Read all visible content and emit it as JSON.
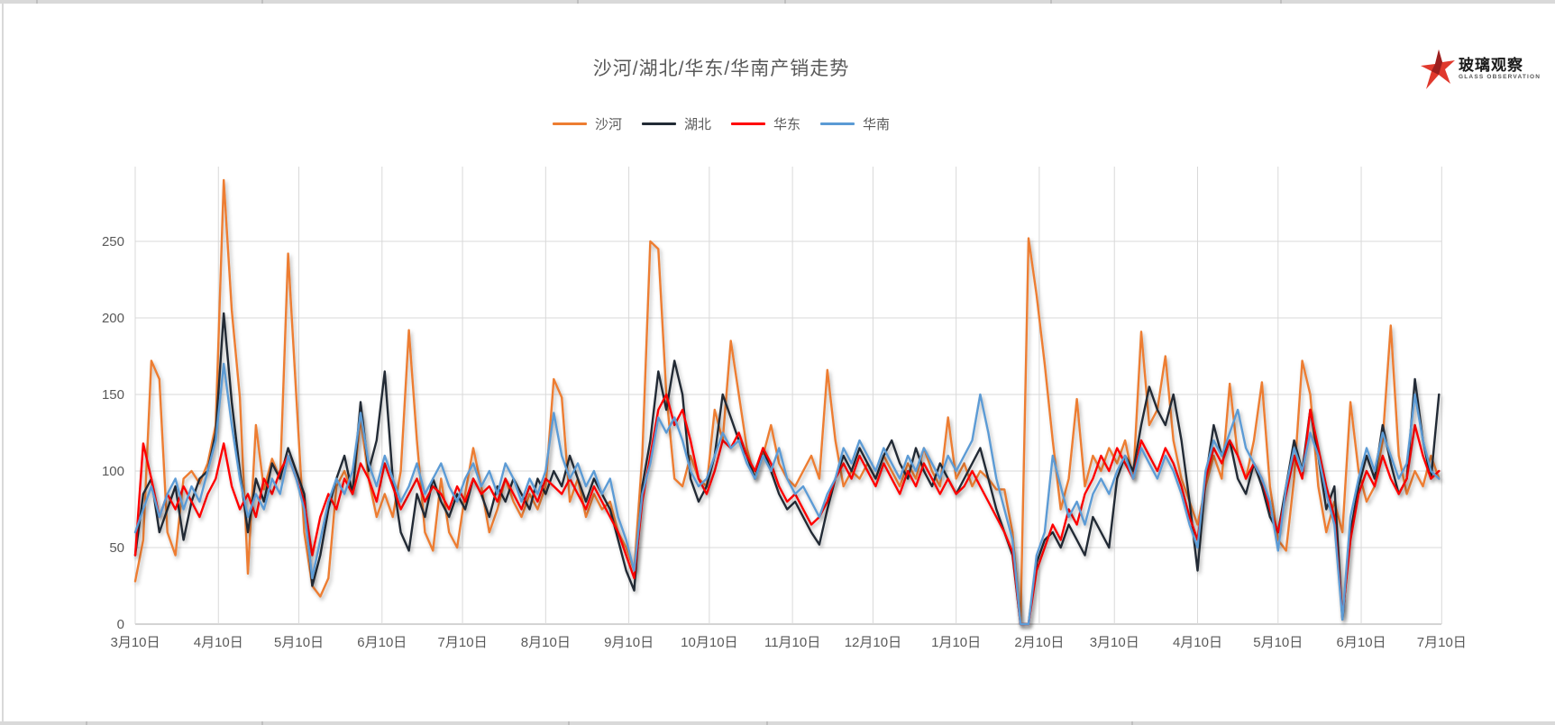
{
  "frame": {
    "top_strip_ticks_x": [
      40,
      290,
      640,
      870,
      1165,
      1420
    ],
    "bottom_strip_ticks_x": [
      95,
      290,
      630,
      850,
      1255
    ]
  },
  "logo": {
    "title": "玻璃观察",
    "subtitle": "GLASS OBSERVATION",
    "star_color": "#e0392d",
    "star_accent_color": "#9c1f1f"
  },
  "chart_data": {
    "type": "line",
    "title": "沙河/湖北/华东/华南产销走势",
    "title_color": "#595959",
    "legend_position": "top-center",
    "grid": true,
    "grid_color": "#d9d9d9",
    "axis_line_color": "#c6c6c6",
    "axis_label_color": "#595959",
    "y_ticks": [
      0,
      50,
      100,
      150,
      200,
      250
    ],
    "ylim": [
      0,
      299
    ],
    "x_tick_labels": [
      "3月10日",
      "4月10日",
      "5月10日",
      "6月10日",
      "7月10日",
      "8月10日",
      "9月10日",
      "10月10日",
      "11月10日",
      "12月10日",
      "1月10日",
      "2月10日",
      "3月10日",
      "4月10日",
      "5月10日",
      "6月10日",
      "7月10日"
    ],
    "x_tick_day_offsets": [
      0,
      31,
      61,
      92,
      122,
      153,
      184,
      214,
      245,
      275,
      306,
      337,
      365,
      396,
      426,
      457,
      487
    ],
    "sample_interval_days": 3,
    "series": [
      {
        "name": "沙河",
        "color": "#ED7D31",
        "values": [
          28,
          55,
          172,
          160,
          60,
          45,
          95,
          100,
          92,
          105,
          130,
          290,
          205,
          148,
          33,
          130,
          88,
          108,
          95,
          242,
          150,
          60,
          25,
          18,
          30,
          90,
          100,
          85,
          135,
          95,
          70,
          85,
          70,
          100,
          192,
          120,
          60,
          48,
          95,
          60,
          50,
          85,
          115,
          90,
          60,
          75,
          95,
          80,
          70,
          85,
          75,
          90,
          160,
          148,
          80,
          95,
          70,
          85,
          75,
          80,
          60,
          50,
          35,
          110,
          250,
          245,
          150,
          95,
          90,
          110,
          95,
          90,
          140,
          120,
          185,
          150,
          115,
          95,
          110,
          130,
          105,
          95,
          90,
          100,
          110,
          95,
          166,
          120,
          90,
          100,
          95,
          105,
          95,
          110,
          100,
          90,
          105,
          95,
          115,
          100,
          90,
          135,
          95,
          105,
          90,
          100,
          95,
          88,
          88,
          60,
          0,
          252,
          215,
          170,
          120,
          75,
          95,
          147,
          90,
          110,
          100,
          115,
          105,
          120,
          95,
          191,
          130,
          140,
          175,
          120,
          95,
          80,
          65,
          90,
          110,
          95,
          157,
          110,
          95,
          120,
          158,
          90,
          55,
          48,
          95,
          172,
          150,
          90,
          60,
          80,
          60,
          145,
          100,
          80,
          90,
          120,
          195,
          110,
          85,
          100,
          90,
          110,
          95
        ]
      },
      {
        "name": "湖北",
        "color": "#222B35",
        "values": [
          45,
          85,
          95,
          60,
          75,
          90,
          55,
          80,
          95,
          100,
          125,
          203,
          145,
          100,
          60,
          95,
          80,
          105,
          95,
          115,
          100,
          85,
          25,
          45,
          75,
          95,
          110,
          85,
          145,
          100,
          120,
          165,
          95,
          60,
          48,
          85,
          70,
          95,
          80,
          70,
          85,
          75,
          95,
          85,
          70,
          90,
          80,
          95,
          85,
          75,
          95,
          85,
          100,
          90,
          110,
          95,
          80,
          95,
          85,
          75,
          55,
          35,
          22,
          90,
          120,
          165,
          140,
          172,
          150,
          95,
          80,
          90,
          110,
          150,
          135,
          120,
          110,
          95,
          115,
          100,
          85,
          75,
          80,
          70,
          60,
          52,
          75,
          95,
          110,
          100,
          115,
          105,
          95,
          110,
          120,
          105,
          95,
          115,
          100,
          90,
          105,
          95,
          85,
          95,
          105,
          115,
          95,
          75,
          60,
          45,
          0,
          0,
          40,
          55,
          60,
          50,
          65,
          55,
          45,
          70,
          60,
          50,
          95,
          110,
          100,
          130,
          155,
          140,
          130,
          150,
          120,
          80,
          35,
          95,
          130,
          110,
          120,
          95,
          85,
          105,
          90,
          70,
          60,
          90,
          120,
          100,
          140,
          110,
          75,
          90,
          3,
          60,
          90,
          110,
          95,
          130,
          105,
          85,
          95,
          160,
          120,
          95,
          150
        ]
      },
      {
        "name": "华东",
        "color": "#FF0000",
        "values": [
          45,
          118,
          95,
          70,
          85,
          75,
          90,
          80,
          70,
          85,
          95,
          118,
          90,
          75,
          85,
          70,
          95,
          85,
          100,
          110,
          95,
          80,
          45,
          70,
          85,
          75,
          95,
          85,
          105,
          95,
          80,
          105,
          90,
          75,
          85,
          95,
          80,
          90,
          85,
          75,
          90,
          80,
          95,
          85,
          90,
          80,
          95,
          85,
          75,
          90,
          80,
          95,
          90,
          85,
          95,
          85,
          75,
          90,
          80,
          70,
          60,
          45,
          30,
          80,
          110,
          140,
          150,
          130,
          140,
          120,
          95,
          85,
          100,
          120,
          115,
          125,
          110,
          100,
          115,
          105,
          90,
          80,
          85,
          75,
          65,
          70,
          80,
          95,
          105,
          95,
          110,
          100,
          90,
          105,
          95,
          85,
          100,
          90,
          105,
          95,
          85,
          95,
          85,
          90,
          100,
          90,
          80,
          70,
          60,
          47,
          0,
          0,
          35,
          50,
          65,
          55,
          75,
          65,
          85,
          95,
          110,
          100,
          115,
          105,
          95,
          120,
          110,
          100,
          115,
          105,
          90,
          70,
          55,
          95,
          115,
          105,
          120,
          110,
          95,
          105,
          95,
          75,
          60,
          85,
          110,
          95,
          140,
          115,
          90,
          70,
          5,
          55,
          85,
          100,
          90,
          110,
          95,
          85,
          95,
          130,
          110,
          95,
          100
        ]
      },
      {
        "name": "华南",
        "color": "#5B9BD5",
        "values": [
          60,
          75,
          90,
          70,
          85,
          95,
          75,
          90,
          80,
          100,
          120,
          170,
          130,
          95,
          70,
          85,
          75,
          95,
          85,
          110,
          95,
          75,
          30,
          55,
          80,
          95,
          85,
          100,
          138,
          105,
          90,
          110,
          95,
          80,
          90,
          105,
          85,
          95,
          105,
          90,
          80,
          95,
          105,
          90,
          100,
          85,
          105,
          95,
          80,
          95,
          85,
          100,
          138,
          110,
          95,
          105,
          90,
          100,
          85,
          95,
          70,
          55,
          35,
          85,
          105,
          135,
          125,
          135,
          120,
          100,
          90,
          95,
          110,
          125,
          115,
          120,
          105,
          95,
          110,
          100,
          115,
          95,
          85,
          90,
          80,
          70,
          85,
          95,
          115,
          105,
          120,
          110,
          100,
          115,
          105,
          95,
          110,
          100,
          115,
          105,
          95,
          110,
          100,
          110,
          120,
          150,
          125,
          95,
          75,
          55,
          0,
          0,
          45,
          60,
          110,
          90,
          70,
          80,
          65,
          85,
          95,
          85,
          100,
          110,
          95,
          115,
          105,
          95,
          110,
          100,
          85,
          65,
          50,
          100,
          120,
          110,
          125,
          140,
          115,
          105,
          95,
          80,
          48,
          90,
          115,
          100,
          125,
          110,
          85,
          65,
          3,
          70,
          95,
          115,
          100,
          125,
          110,
          95,
          105,
          150,
          120,
          100,
          95
        ]
      }
    ]
  }
}
